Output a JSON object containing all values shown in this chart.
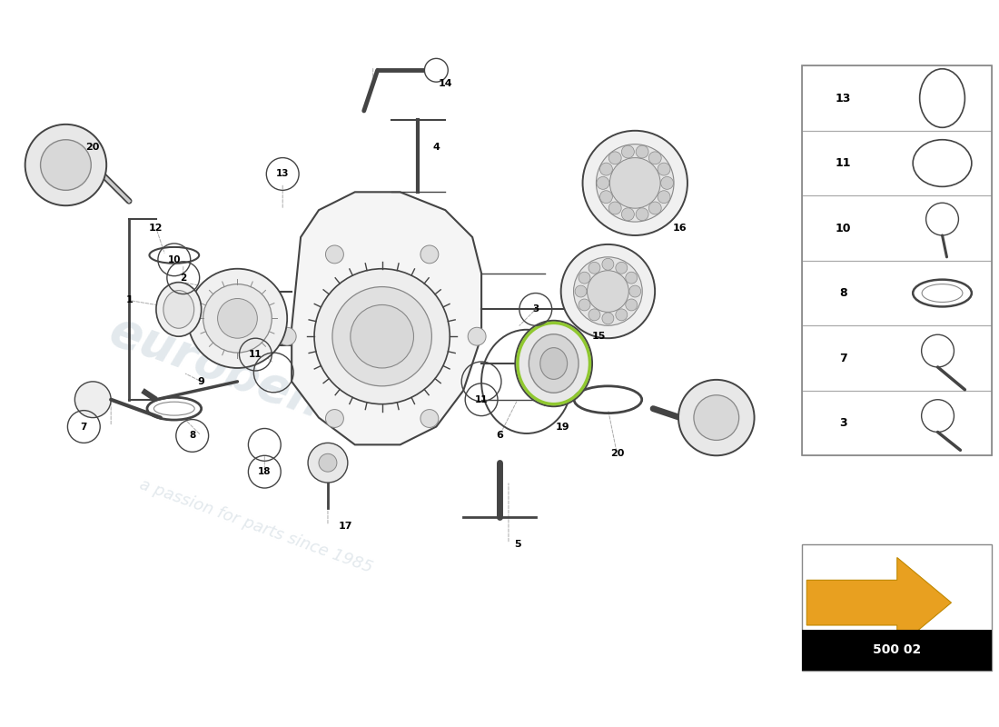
{
  "bg_color": "#ffffff",
  "arrow_color": "#e8a020",
  "page_num": "500 02",
  "line_color": "#444444",
  "light_line": "#888888",
  "watermark_color": "#c8d4dc"
}
